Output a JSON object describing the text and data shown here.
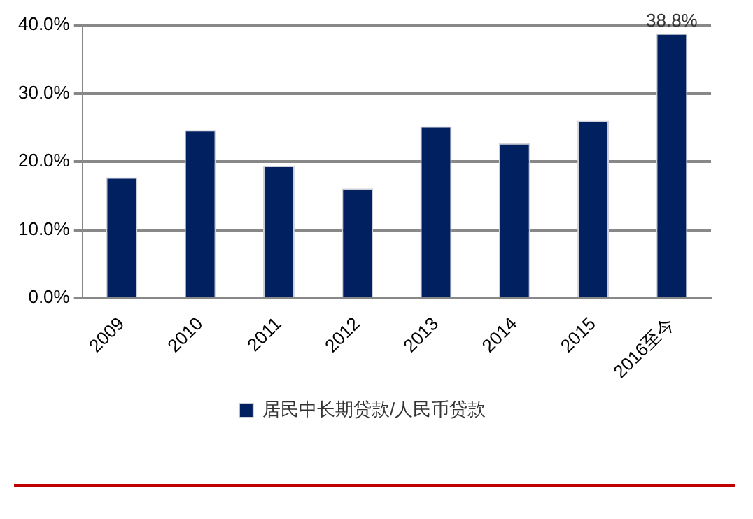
{
  "chart_data": {
    "type": "bar",
    "categories": [
      "2009",
      "2010",
      "2011",
      "2012",
      "2013",
      "2014",
      "2015",
      "2016至今"
    ],
    "series": [
      {
        "name": "居民中长期贷款/人民币贷款",
        "color": "#002060",
        "values": [
          17.7,
          24.6,
          19.4,
          16.1,
          25.2,
          22.7,
          26.0,
          38.8
        ],
        "value_labels": [
          null,
          null,
          null,
          null,
          null,
          null,
          null,
          "38.8%"
        ]
      }
    ],
    "ylim": [
      0,
      40
    ],
    "yticks": [
      {
        "value": 0,
        "label": "0.0%"
      },
      {
        "value": 10,
        "label": "10.0%"
      },
      {
        "value": 20,
        "label": "20.0%"
      },
      {
        "value": 30,
        "label": "30.0%"
      },
      {
        "value": 40,
        "label": "40.0%"
      }
    ],
    "grid": "y",
    "legend": "bottom"
  }
}
